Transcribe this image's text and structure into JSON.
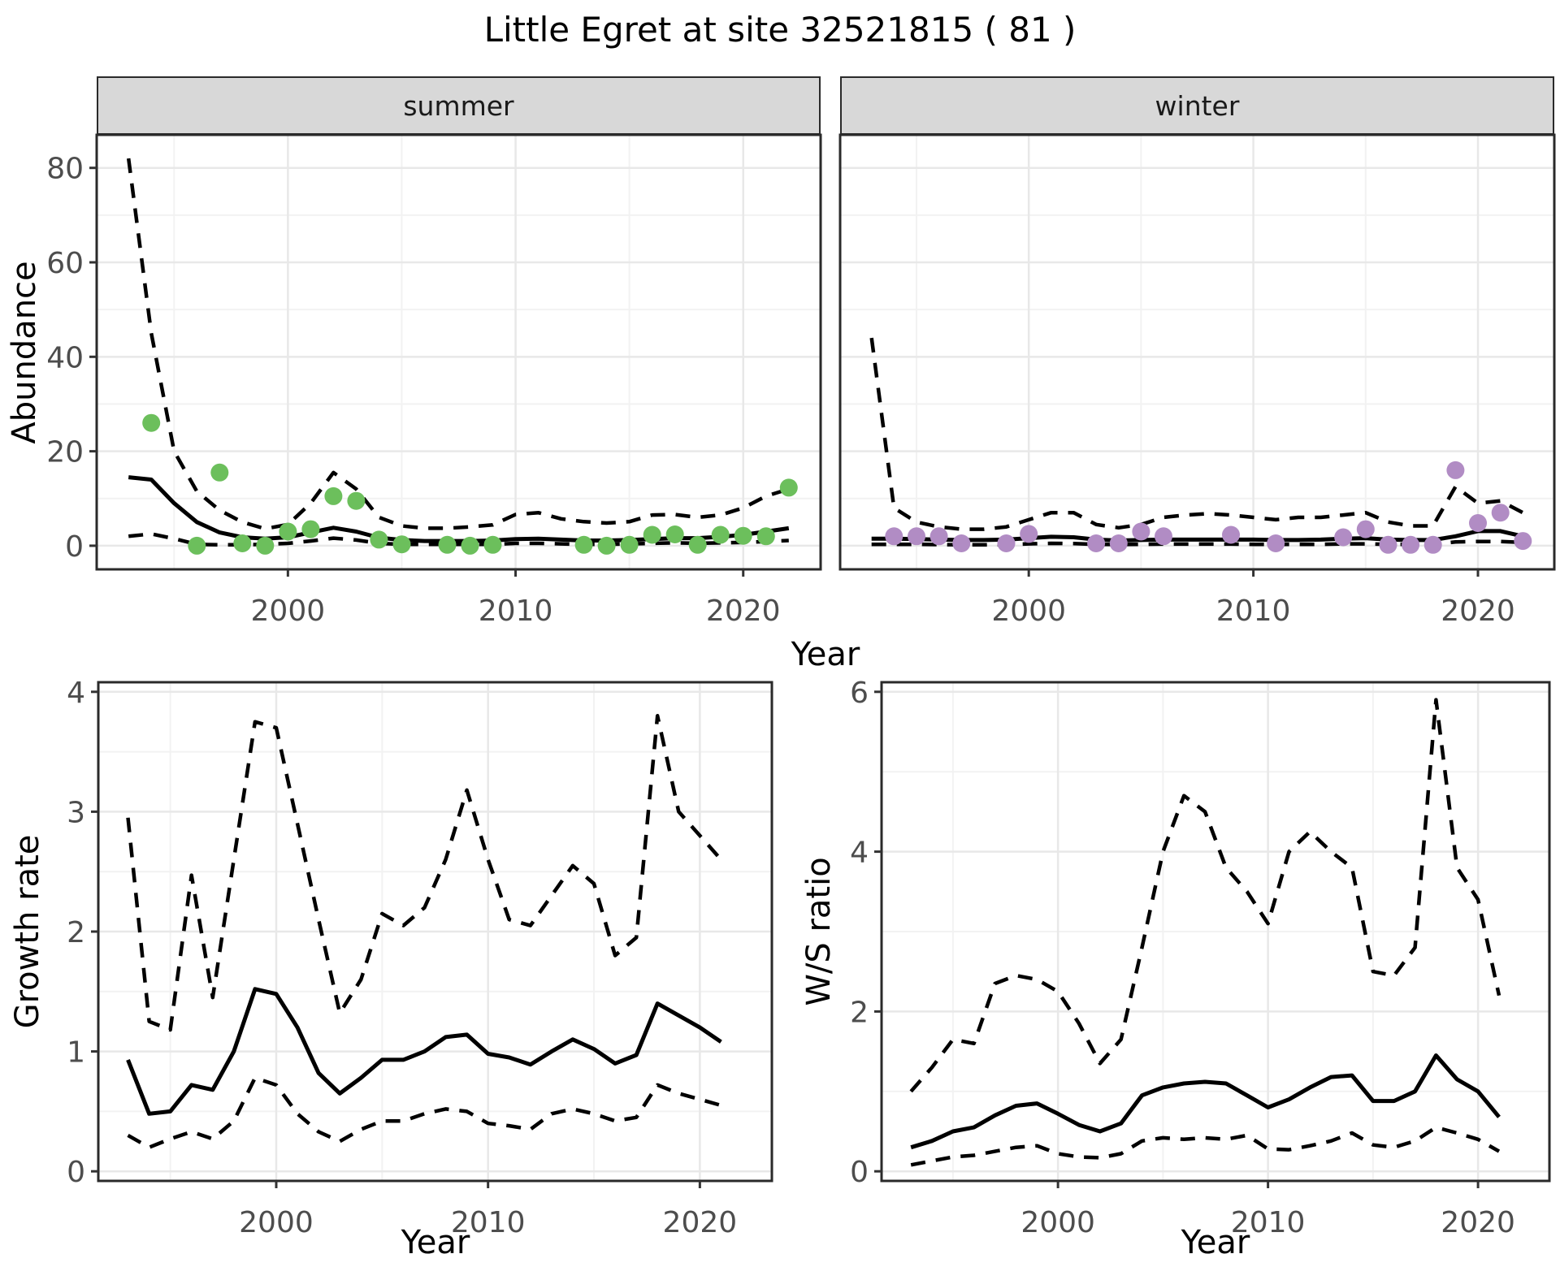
{
  "title": "Little Egret at site 32521815 ( 81 )",
  "colors": {
    "summer_point": "#6cbf5c",
    "winter_point": "#b18cc4",
    "line": "#000000",
    "grid_major": "#e8e8e8",
    "grid_minor": "#f2f2f2",
    "panel_border": "#2a2a2a",
    "strip_bg": "#d8d8d8",
    "tick_text": "#4d4d4d"
  },
  "chart_data": [
    {
      "type": "line+scatter",
      "facet": "summer",
      "ylabel": "Abundance",
      "xlabel": "Year",
      "legend": "none",
      "grid": true,
      "xlim": [
        1991.6,
        2023.4
      ],
      "ylim": [
        -5,
        87
      ],
      "xticks": [
        2000,
        2010,
        2020
      ],
      "xticks_minor": [
        1995,
        2005,
        2015
      ],
      "yticks": [
        0,
        20,
        40,
        60,
        80
      ],
      "yticks_minor": [
        10,
        30,
        50,
        70
      ],
      "x": [
        1993,
        1994,
        1995,
        1996,
        1997,
        1998,
        1999,
        2000,
        2001,
        2002,
        2003,
        2004,
        2005,
        2006,
        2007,
        2008,
        2009,
        2010,
        2011,
        2012,
        2013,
        2014,
        2015,
        2016,
        2017,
        2018,
        2019,
        2020,
        2021,
        2022
      ],
      "series": [
        {
          "name": "fit",
          "style": "solid",
          "values": [
            14.5,
            14,
            9,
            5,
            2.8,
            1.8,
            1.5,
            1.8,
            2.8,
            3.8,
            3.0,
            1.7,
            1.2,
            1.0,
            1.0,
            1.0,
            1.1,
            1.4,
            1.5,
            1.3,
            1.1,
            1.1,
            1.2,
            1.4,
            1.6,
            1.6,
            1.9,
            2.3,
            3.0,
            3.7
          ]
        },
        {
          "name": "upper_ci",
          "style": "dashed",
          "values": [
            82,
            45,
            20,
            11.5,
            7.5,
            5,
            3.6,
            4.5,
            9,
            15.5,
            12,
            6,
            4.2,
            3.7,
            3.7,
            4,
            4.4,
            6.6,
            7,
            5.7,
            5.1,
            4.8,
            5.1,
            6.5,
            6.6,
            6,
            6.5,
            8,
            10.5,
            12
          ]
        },
        {
          "name": "lower_ci",
          "style": "dashed",
          "values": [
            2.0,
            2.5,
            1.5,
            0.3,
            0.2,
            0.2,
            0.3,
            0.5,
            1.0,
            1.6,
            1.2,
            0.5,
            0.3,
            0.3,
            0.3,
            0.3,
            0.3,
            0.5,
            0.5,
            0.4,
            0.3,
            0.3,
            0.4,
            0.5,
            0.6,
            0.5,
            0.6,
            0.7,
            0.9,
            1.1
          ]
        }
      ],
      "points": {
        "name": "observed-counts-summer",
        "color": "#6cbf5c",
        "x": [
          1994,
          1996,
          1997,
          1998,
          1999,
          2000,
          2001,
          2002,
          2003,
          2004,
          2005,
          2007,
          2008,
          2009,
          2013,
          2014,
          2015,
          2016,
          2017,
          2018,
          2019,
          2020,
          2021,
          2022
        ],
        "y": [
          26,
          0,
          15.5,
          0.5,
          0,
          3,
          3.5,
          10.5,
          9.5,
          1.3,
          0.3,
          0.2,
          0,
          0.2,
          0.2,
          0,
          0.2,
          2.3,
          2.4,
          0.2,
          2.3,
          2.1,
          2.0,
          12.3
        ]
      }
    },
    {
      "type": "line+scatter",
      "facet": "winter",
      "ylabel": "Abundance",
      "xlabel": "Year",
      "legend": "none",
      "grid": true,
      "xlim": [
        1991.6,
        2023.4
      ],
      "ylim": [
        -5,
        87
      ],
      "xticks": [
        2000,
        2010,
        2020
      ],
      "xticks_minor": [
        1995,
        2005,
        2015
      ],
      "yticks": [
        0,
        20,
        40,
        60,
        80
      ],
      "yticks_minor": [
        10,
        30,
        50,
        70
      ],
      "x": [
        1993,
        1994,
        1995,
        1996,
        1997,
        1998,
        1999,
        2000,
        2001,
        2002,
        2003,
        2004,
        2005,
        2006,
        2007,
        2008,
        2009,
        2010,
        2011,
        2012,
        2013,
        2014,
        2015,
        2016,
        2017,
        2018,
        2019,
        2020,
        2021,
        2022
      ],
      "series": [
        {
          "name": "fit",
          "style": "solid",
          "values": [
            1.5,
            1.5,
            1.4,
            1.3,
            1.2,
            1.2,
            1.3,
            1.6,
            1.9,
            1.8,
            1.3,
            1.1,
            1.2,
            1.3,
            1.3,
            1.3,
            1.3,
            1.3,
            1.2,
            1.2,
            1.3,
            1.5,
            1.6,
            1.3,
            1.2,
            1.2,
            2.0,
            3.1,
            3.1,
            2.0
          ]
        },
        {
          "name": "upper_ci",
          "style": "dashed",
          "values": [
            44,
            8,
            5,
            4,
            3.5,
            3.5,
            4,
            5.5,
            7,
            7,
            4.5,
            3.8,
            4.5,
            6,
            6.5,
            6.8,
            6.5,
            6,
            5.5,
            6,
            6,
            6.5,
            7,
            5,
            4.2,
            4.2,
            12.5,
            9,
            9.5,
            7
          ]
        },
        {
          "name": "lower_ci",
          "style": "dashed",
          "values": [
            0.3,
            0.3,
            0.3,
            0.25,
            0.2,
            0.2,
            0.25,
            0.4,
            0.5,
            0.45,
            0.3,
            0.25,
            0.3,
            0.35,
            0.35,
            0.35,
            0.35,
            0.3,
            0.3,
            0.3,
            0.3,
            0.4,
            0.4,
            0.3,
            0.3,
            0.3,
            0.8,
            0.9,
            0.9,
            0.7
          ]
        }
      ],
      "points": {
        "name": "observed-counts-winter",
        "color": "#b18cc4",
        "x": [
          1994,
          1995,
          1996,
          1997,
          1999,
          2000,
          2003,
          2004,
          2005,
          2006,
          2009,
          2011,
          2014,
          2015,
          2016,
          2017,
          2018,
          2019,
          2020,
          2021,
          2022
        ],
        "y": [
          2,
          2,
          2,
          0.5,
          0.5,
          2.5,
          0.5,
          0.5,
          3,
          2,
          2.3,
          0.5,
          1.8,
          3.5,
          0.2,
          0.2,
          0.2,
          16,
          4.8,
          7,
          1
        ]
      }
    },
    {
      "type": "line",
      "facet": "",
      "ylabel": "Growth rate",
      "xlabel": "Year",
      "legend": "none",
      "grid": true,
      "xlim": [
        1991.6,
        2023.4
      ],
      "ylim": [
        -0.08,
        4.08
      ],
      "xticks": [
        2000,
        2010,
        2020
      ],
      "xticks_minor": [
        1995,
        2005,
        2015
      ],
      "yticks": [
        0,
        1,
        2,
        3,
        4
      ],
      "yticks_minor": [
        0.5,
        1.5,
        2.5,
        3.5
      ],
      "x": [
        1993,
        1994,
        1995,
        1996,
        1997,
        1998,
        1999,
        2000,
        2001,
        2002,
        2003,
        2004,
        2005,
        2006,
        2007,
        2008,
        2009,
        2010,
        2011,
        2012,
        2013,
        2014,
        2015,
        2016,
        2017,
        2018,
        2019,
        2020,
        2021
      ],
      "series": [
        {
          "name": "fit",
          "style": "solid",
          "values": [
            0.93,
            0.48,
            0.5,
            0.72,
            0.68,
            1.0,
            1.52,
            1.48,
            1.2,
            0.82,
            0.65,
            0.78,
            0.93,
            0.93,
            1.0,
            1.12,
            1.14,
            0.98,
            0.95,
            0.89,
            1.0,
            1.1,
            1.02,
            0.9,
            0.97,
            1.4,
            1.3,
            1.2,
            1.08
          ]
        },
        {
          "name": "upper_ci",
          "style": "dashed",
          "values": [
            2.95,
            1.25,
            1.18,
            2.47,
            1.45,
            2.6,
            3.75,
            3.7,
            2.9,
            2.1,
            1.32,
            1.6,
            2.15,
            2.05,
            2.2,
            2.6,
            3.18,
            2.6,
            2.1,
            2.05,
            2.3,
            2.55,
            2.4,
            1.8,
            1.95,
            3.8,
            3.0,
            2.8,
            2.6
          ]
        },
        {
          "name": "lower_ci",
          "style": "dashed",
          "values": [
            0.3,
            0.2,
            0.27,
            0.33,
            0.27,
            0.42,
            0.78,
            0.72,
            0.48,
            0.33,
            0.25,
            0.35,
            0.42,
            0.42,
            0.48,
            0.52,
            0.5,
            0.4,
            0.38,
            0.35,
            0.48,
            0.52,
            0.48,
            0.42,
            0.45,
            0.72,
            0.65,
            0.6,
            0.55
          ]
        }
      ]
    },
    {
      "type": "line",
      "facet": "",
      "ylabel": "W/S ratio",
      "xlabel": "Year",
      "legend": "none",
      "grid": true,
      "xlim": [
        1991.6,
        2023.4
      ],
      "ylim": [
        -0.12,
        6.12
      ],
      "xticks": [
        2000,
        2010,
        2020
      ],
      "xticks_minor": [
        1995,
        2005,
        2015
      ],
      "yticks": [
        0,
        2,
        4,
        6
      ],
      "yticks_minor": [
        1,
        3,
        5
      ],
      "x": [
        1993,
        1994,
        1995,
        1996,
        1997,
        1998,
        1999,
        2000,
        2001,
        2002,
        2003,
        2004,
        2005,
        2006,
        2007,
        2008,
        2009,
        2010,
        2011,
        2012,
        2013,
        2014,
        2015,
        2016,
        2017,
        2018,
        2019,
        2020,
        2021
      ],
      "series": [
        {
          "name": "fit",
          "style": "solid",
          "values": [
            0.3,
            0.38,
            0.5,
            0.55,
            0.7,
            0.82,
            0.85,
            0.72,
            0.58,
            0.5,
            0.6,
            0.95,
            1.05,
            1.1,
            1.12,
            1.1,
            0.95,
            0.8,
            0.9,
            1.05,
            1.18,
            1.2,
            0.88,
            0.88,
            1.0,
            1.45,
            1.15,
            1.0,
            0.68
          ]
        },
        {
          "name": "upper_ci",
          "style": "dashed",
          "values": [
            1.0,
            1.3,
            1.65,
            1.6,
            2.35,
            2.45,
            2.4,
            2.25,
            1.85,
            1.35,
            1.65,
            2.8,
            4.0,
            4.7,
            4.5,
            3.8,
            3.5,
            3.1,
            4.0,
            4.25,
            4.0,
            3.8,
            2.5,
            2.45,
            2.8,
            5.9,
            3.8,
            3.4,
            2.2
          ]
        },
        {
          "name": "lower_ci",
          "style": "dashed",
          "values": [
            0.08,
            0.13,
            0.18,
            0.2,
            0.25,
            0.3,
            0.32,
            0.22,
            0.18,
            0.17,
            0.22,
            0.38,
            0.42,
            0.4,
            0.42,
            0.4,
            0.45,
            0.28,
            0.27,
            0.32,
            0.38,
            0.48,
            0.33,
            0.3,
            0.38,
            0.55,
            0.48,
            0.4,
            0.25
          ]
        }
      ]
    }
  ]
}
